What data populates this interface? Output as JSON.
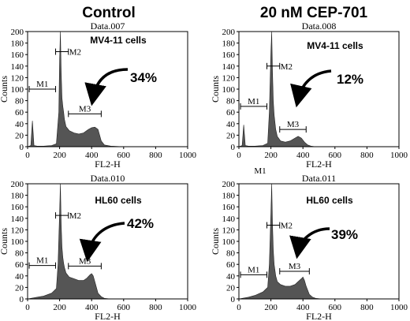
{
  "column_titles": [
    "Control",
    "20 nM CEP-701"
  ],
  "stray_label": "M1",
  "colors": {
    "histogram": "#555555",
    "axis": "#000000",
    "background": "#ffffff"
  },
  "chart_data": [
    {
      "type": "area",
      "title": "Data.007",
      "xlabel": "FL2-H",
      "ylabel": "Counts",
      "xlim": [
        0,
        1000
      ],
      "ylim": [
        0,
        200
      ],
      "x_ticks": [
        0,
        200,
        400,
        600,
        800,
        1000
      ],
      "y_ticks": [
        0,
        20,
        40,
        60,
        80,
        100,
        120,
        140,
        160,
        180,
        200
      ],
      "cell_label": "MV4-11 cells",
      "percent_label": "34%",
      "gates": [
        {
          "name": "M1",
          "range": [
            10,
            175
          ],
          "level": 100
        },
        {
          "name": "M2",
          "range": [
            175,
            255
          ],
          "level": 165
        },
        {
          "name": "M3",
          "range": [
            255,
            460
          ],
          "level": 57
        }
      ],
      "x": [
        0,
        20,
        30,
        40,
        60,
        100,
        150,
        180,
        195,
        200,
        205,
        210,
        215,
        220,
        225,
        230,
        240,
        260,
        290,
        320,
        350,
        380,
        400,
        420,
        440,
        450,
        460,
        480,
        520,
        600,
        700,
        800,
        900,
        1000
      ],
      "values": [
        0,
        2,
        45,
        2,
        1,
        1,
        2,
        5,
        60,
        150,
        200,
        130,
        85,
        70,
        60,
        48,
        35,
        28,
        24,
        22,
        24,
        30,
        33,
        34,
        30,
        20,
        10,
        3,
        1,
        0,
        0,
        0,
        0,
        0
      ]
    },
    {
      "type": "area",
      "title": "Data.008",
      "xlabel": "FL2-H",
      "ylabel": "Counts",
      "xlim": [
        0,
        1000
      ],
      "ylim": [
        0,
        200
      ],
      "x_ticks": [
        0,
        200,
        400,
        600,
        800,
        1000
      ],
      "y_ticks": [
        0,
        20,
        40,
        60,
        80,
        100,
        120,
        140,
        160,
        180,
        200
      ],
      "cell_label": "MV4-11 cells",
      "percent_label": "12%",
      "gates": [
        {
          "name": "M1",
          "range": [
            10,
            175
          ],
          "level": 70
        },
        {
          "name": "M2",
          "range": [
            175,
            255
          ],
          "level": 140
        },
        {
          "name": "M3",
          "range": [
            255,
            420
          ],
          "level": 30
        }
      ],
      "x": [
        0,
        20,
        30,
        40,
        60,
        100,
        150,
        180,
        190,
        200,
        205,
        210,
        215,
        220,
        230,
        240,
        260,
        290,
        320,
        350,
        370,
        390,
        410,
        430,
        450,
        480,
        520,
        600,
        700,
        800,
        900,
        1000
      ],
      "values": [
        0,
        2,
        38,
        2,
        1,
        1,
        2,
        6,
        60,
        165,
        200,
        130,
        80,
        55,
        30,
        18,
        10,
        8,
        10,
        15,
        18,
        15,
        8,
        3,
        1,
        0,
        0,
        0,
        0,
        0,
        0,
        0
      ]
    },
    {
      "type": "area",
      "title": "Data.010",
      "xlabel": "FL2-H",
      "ylabel": "Counts",
      "xlim": [
        0,
        1000
      ],
      "ylim": [
        0,
        200
      ],
      "x_ticks": [
        0,
        200,
        400,
        600,
        800,
        1000
      ],
      "y_ticks": [
        0,
        20,
        40,
        60,
        80,
        100,
        120,
        140,
        160,
        180,
        200
      ],
      "cell_label": "HL60 cells",
      "percent_label": "42%",
      "gates": [
        {
          "name": "M1",
          "range": [
            10,
            175
          ],
          "level": 58
        },
        {
          "name": "M2",
          "range": [
            175,
            255
          ],
          "level": 145
        },
        {
          "name": "M3",
          "range": [
            255,
            460
          ],
          "level": 57
        }
      ],
      "x": [
        0,
        20,
        40,
        60,
        100,
        150,
        180,
        190,
        200,
        205,
        210,
        215,
        220,
        225,
        230,
        240,
        260,
        290,
        320,
        350,
        370,
        390,
        400,
        410,
        420,
        440,
        460,
        480,
        520,
        600,
        700,
        800,
        900,
        1000
      ],
      "values": [
        0,
        1,
        2,
        3,
        5,
        10,
        18,
        60,
        150,
        200,
        130,
        90,
        72,
        62,
        55,
        45,
        38,
        35,
        32,
        32,
        36,
        42,
        44,
        40,
        30,
        10,
        4,
        1,
        0,
        0,
        0,
        0,
        0,
        0
      ]
    },
    {
      "type": "area",
      "title": "Data.011",
      "xlabel": "FL2-H",
      "ylabel": "Counts",
      "xlim": [
        0,
        1000
      ],
      "ylim": [
        0,
        200
      ],
      "x_ticks": [
        0,
        200,
        400,
        600,
        800,
        1000
      ],
      "y_ticks": [
        0,
        20,
        40,
        60,
        80,
        100,
        120,
        140,
        160,
        180,
        200
      ],
      "cell_label": "HL60 cells",
      "percent_label": "39%",
      "gates": [
        {
          "name": "M1",
          "range": [
            10,
            175
          ],
          "level": 42
        },
        {
          "name": "M2",
          "range": [
            175,
            255
          ],
          "level": 128
        },
        {
          "name": "M3",
          "range": [
            255,
            440
          ],
          "level": 48
        }
      ],
      "x": [
        0,
        20,
        40,
        60,
        100,
        150,
        180,
        190,
        200,
        205,
        210,
        215,
        220,
        230,
        240,
        260,
        290,
        320,
        350,
        370,
        390,
        400,
        410,
        420,
        440,
        460,
        480,
        520,
        600,
        700,
        800,
        900,
        1000
      ],
      "values": [
        0,
        1,
        2,
        3,
        6,
        12,
        20,
        60,
        150,
        200,
        130,
        85,
        60,
        40,
        30,
        25,
        22,
        22,
        25,
        30,
        35,
        38,
        32,
        22,
        8,
        3,
        1,
        0,
        0,
        0,
        0,
        0,
        0
      ]
    }
  ]
}
